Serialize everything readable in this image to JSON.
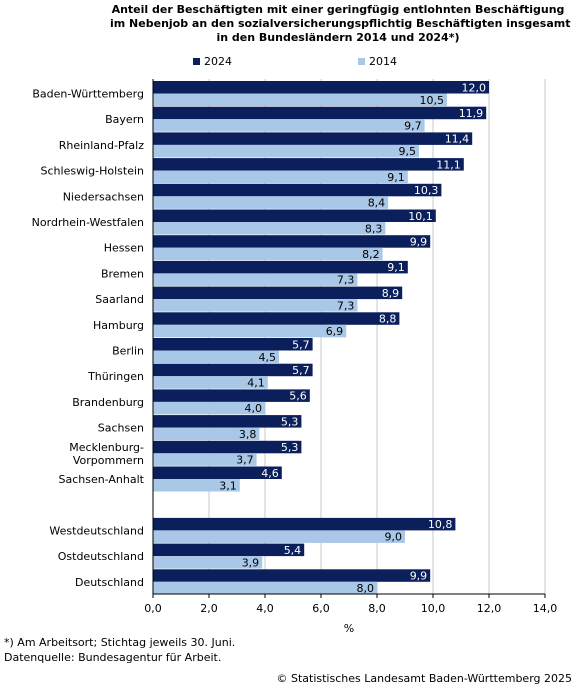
{
  "chart_data": {
    "type": "bar",
    "orientation": "horizontal",
    "title_lines": [
      "Anteil der Beschäftigten mit einer geringfügig entlohnten Beschäftigung",
      "im Nebenjob an den sozialversicherungspflichtig Beschäftigten insgesamt",
      "in den Bundesländern 2014 und 2024*)"
    ],
    "categories": [
      [
        "Baden-Württemberg"
      ],
      [
        "Bayern"
      ],
      [
        "Rheinland-Pfalz"
      ],
      [
        "Schleswig-Holstein"
      ],
      [
        "Niedersachsen"
      ],
      [
        "Nordrhein-Westfalen"
      ],
      [
        "Hessen"
      ],
      [
        "Bremen"
      ],
      [
        "Saarland"
      ],
      [
        "Hamburg"
      ],
      [
        "Berlin"
      ],
      [
        "Thüringen"
      ],
      [
        "Brandenburg"
      ],
      [
        "Sachsen"
      ],
      [
        "Mecklenburg-",
        "Vorpommern"
      ],
      [
        "Sachsen-Anhalt"
      ],
      [
        "Westdeutschland"
      ],
      [
        "Ostdeutschland"
      ],
      [
        "Deutschland"
      ]
    ],
    "series": [
      {
        "name": "2024",
        "color": "#0a1f5c",
        "values": [
          12.0,
          11.9,
          11.4,
          11.1,
          10.3,
          10.1,
          9.9,
          9.1,
          8.9,
          8.8,
          5.7,
          5.7,
          5.6,
          5.3,
          5.3,
          4.6,
          10.8,
          5.4,
          9.9
        ],
        "labels": [
          "12,0",
          "11,9",
          "11,4",
          "11,1",
          "10,3",
          "10,1",
          "9,9",
          "9,1",
          "8,9",
          "8,8",
          "5,7",
          "5,7",
          "5,6",
          "5,3",
          "5,3",
          "4,6",
          "10,8",
          "5,4",
          "9,9"
        ]
      },
      {
        "name": "2014",
        "color": "#a9c7e6",
        "values": [
          10.5,
          9.7,
          9.5,
          9.1,
          8.4,
          8.3,
          8.2,
          7.3,
          7.3,
          6.9,
          4.5,
          4.1,
          4.0,
          3.8,
          3.7,
          3.1,
          9.0,
          3.9,
          8.0
        ],
        "labels": [
          "10,5",
          "9,7",
          "9,5",
          "9,1",
          "8,4",
          "8,3",
          "8,2",
          "7,3",
          "7,3",
          "6,9",
          "4,5",
          "4,1",
          "4,0",
          "3,8",
          "3,7",
          "3,1",
          "9,0",
          "3,9",
          "8,0"
        ]
      }
    ],
    "xlim": [
      0,
      14
    ],
    "xticks": [
      0,
      2,
      4,
      6,
      8,
      10,
      12,
      14
    ],
    "xtick_labels": [
      "0,0",
      "2,0",
      "4,0",
      "6,0",
      "8,0",
      "10,0",
      "12,0",
      "14,0"
    ],
    "xlabel": "%",
    "grid": "vertical",
    "legend_position": "top"
  },
  "footnotes": [
    "*) Am Arbeitsort; Stichtag jeweils 30. Juni.",
    "Datenquelle: Bundesagentur für Arbeit."
  ],
  "copyright": "© Statistisches Landesamt Baden-Württemberg 2025"
}
